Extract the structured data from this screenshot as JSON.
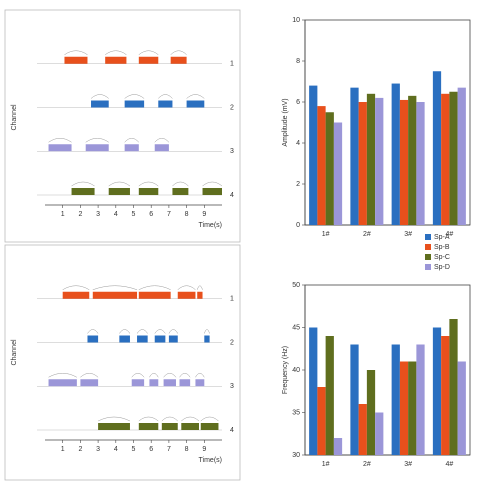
{
  "chart_data": [
    {
      "type": "raster",
      "xlabel": "Time(s)",
      "ylabel": "Channel",
      "xlim": [
        0,
        10
      ],
      "xticks": [
        1,
        2,
        3,
        4,
        5,
        6,
        7,
        8,
        9
      ],
      "rows": [
        {
          "name": "1",
          "color": "#e8501c",
          "segments": [
            [
              1.1,
              2.4
            ],
            [
              3.4,
              4.6
            ],
            [
              5.3,
              6.4
            ],
            [
              7.1,
              8.0
            ]
          ]
        },
        {
          "name": "2",
          "color": "#2a6fc0",
          "segments": [
            [
              2.6,
              3.6
            ],
            [
              4.5,
              5.6
            ],
            [
              6.4,
              7.2
            ],
            [
              8.0,
              9.0
            ]
          ]
        },
        {
          "name": "3",
          "color": "#9b96d8",
          "segments": [
            [
              0.2,
              1.5
            ],
            [
              2.3,
              3.6
            ],
            [
              4.5,
              5.3
            ],
            [
              6.2,
              7.0
            ]
          ]
        },
        {
          "name": "4",
          "color": "#5f6e1e",
          "segments": [
            [
              1.5,
              2.8
            ],
            [
              3.6,
              4.8
            ],
            [
              5.3,
              6.4
            ],
            [
              7.2,
              8.1
            ],
            [
              8.9,
              10.0
            ]
          ]
        }
      ]
    },
    {
      "type": "raster",
      "xlabel": "Time(s)",
      "ylabel": "Channel",
      "xlim": [
        0,
        10
      ],
      "xticks": [
        1,
        2,
        3,
        4,
        5,
        6,
        7,
        8,
        9
      ],
      "rows": [
        {
          "name": "1",
          "color": "#e8501c",
          "segments": [
            [
              1.0,
              2.5
            ],
            [
              2.7,
              5.2
            ],
            [
              5.3,
              7.1
            ],
            [
              7.5,
              8.5
            ],
            [
              8.6,
              8.9
            ]
          ]
        },
        {
          "name": "2",
          "color": "#2a6fc0",
          "segments": [
            [
              2.4,
              3.0
            ],
            [
              4.2,
              4.8
            ],
            [
              5.2,
              5.8
            ],
            [
              6.2,
              6.8
            ],
            [
              7.0,
              7.5
            ],
            [
              9.0,
              9.3
            ]
          ]
        },
        {
          "name": "3",
          "color": "#9b96d8",
          "segments": [
            [
              0.2,
              1.8
            ],
            [
              2.0,
              3.0
            ],
            [
              4.9,
              5.6
            ],
            [
              5.9,
              6.4
            ],
            [
              6.7,
              7.4
            ],
            [
              7.6,
              8.2
            ],
            [
              8.5,
              9.0
            ]
          ]
        },
        {
          "name": "4",
          "color": "#5f6e1e",
          "segments": [
            [
              3.0,
              4.8
            ],
            [
              5.3,
              6.4
            ],
            [
              6.6,
              7.5
            ],
            [
              7.7,
              8.7
            ],
            [
              8.8,
              9.8
            ]
          ]
        }
      ]
    },
    {
      "type": "bar",
      "ylabel": "Amplitude (mV)",
      "categories": [
        "1#",
        "2#",
        "3#",
        "4#"
      ],
      "ylim": [
        0,
        10
      ],
      "yticks": [
        0,
        2,
        4,
        6,
        8,
        10
      ],
      "series": [
        {
          "color": "#2a6fc0",
          "values": [
            6.8,
            6.7,
            6.9,
            7.5
          ]
        },
        {
          "color": "#e8501c",
          "values": [
            5.8,
            6.0,
            6.1,
            6.4
          ]
        },
        {
          "color": "#5f6e1e",
          "values": [
            5.5,
            6.4,
            6.3,
            6.5
          ]
        },
        {
          "color": "#9b96d8",
          "values": [
            5.0,
            6.2,
            6.0,
            6.7
          ]
        }
      ]
    },
    {
      "type": "bar",
      "ylabel": "Frequency (Hz)",
      "categories": [
        "1#",
        "2#",
        "3#",
        "4#"
      ],
      "ylim": [
        30,
        50
      ],
      "yticks": [
        30,
        35,
        40,
        45,
        50
      ],
      "legend": "top-right",
      "series": [
        {
          "name": "Sp-A",
          "color": "#2a6fc0",
          "values": [
            45,
            43,
            43,
            45
          ]
        },
        {
          "name": "Sp-B",
          "color": "#e8501c",
          "values": [
            38,
            36,
            41,
            44
          ]
        },
        {
          "name": "Sp-C",
          "color": "#5f6e1e",
          "values": [
            44,
            40,
            41,
            46
          ]
        },
        {
          "name": "Sp-D",
          "color": "#9b96d8",
          "values": [
            32,
            35,
            43,
            41
          ]
        }
      ]
    }
  ]
}
